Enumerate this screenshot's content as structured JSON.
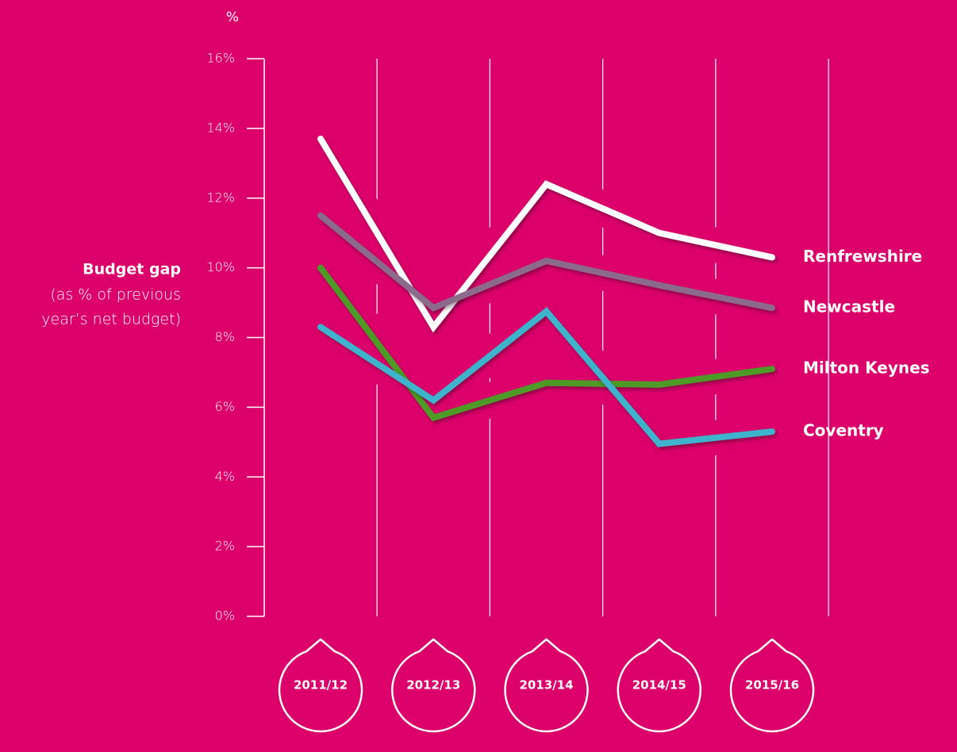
{
  "chart_data": {
    "type": "line",
    "y_unit": "%",
    "y_label": [
      "Budget gap",
      "(as % of previous",
      "year’s net budget)"
    ],
    "categories": [
      "2011/12",
      "2012/13",
      "2013/14",
      "2014/15",
      "2015/16"
    ],
    "series": [
      {
        "name": "Renfrewshire",
        "color": "#ffffff",
        "values": [
          13.7,
          8.3,
          12.4,
          11.0,
          10.3
        ]
      },
      {
        "name": "Newcastle",
        "color": "#8c6a8c",
        "values": [
          11.5,
          8.85,
          10.2,
          9.5,
          8.85
        ]
      },
      {
        "name": "Milton Keynes",
        "color": "#4e9a28",
        "values": [
          10.0,
          5.7,
          6.7,
          6.65,
          7.1
        ]
      },
      {
        "name": "Coventry",
        "color": "#3db3cc",
        "values": [
          8.3,
          6.2,
          8.75,
          4.95,
          5.3
        ]
      }
    ],
    "ylim": [
      0,
      16
    ],
    "yticks": [
      {
        "value": 0,
        "label": "0%"
      },
      {
        "value": 2,
        "label": "2%"
      },
      {
        "value": 4,
        "label": "4%"
      },
      {
        "value": 6,
        "label": "6%"
      },
      {
        "value": 8,
        "label": "8%"
      },
      {
        "value": 10,
        "label": "10%"
      },
      {
        "value": 12,
        "label": "12%"
      },
      {
        "value": 14,
        "label": "14%"
      },
      {
        "value": 16,
        "label": "16%"
      }
    ],
    "background": "#dc006b"
  }
}
